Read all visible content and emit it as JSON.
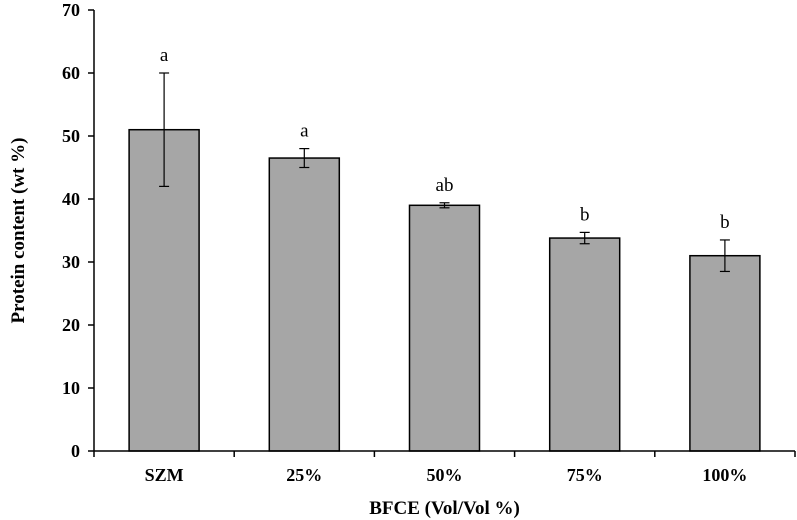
{
  "chart_data": {
    "type": "bar",
    "title": "",
    "xlabel": "BFCE (Vol/Vol %)",
    "ylabel": "Protein content (wt %)",
    "categories": [
      "SZM",
      "25%",
      "50%",
      "75%",
      "100%"
    ],
    "values": [
      51.0,
      46.5,
      39.0,
      33.8,
      31.0
    ],
    "error": [
      9.0,
      1.5,
      0.4,
      0.9,
      2.5
    ],
    "significance": [
      "a",
      "a",
      "ab",
      "b",
      "b"
    ],
    "ylim": [
      0,
      70
    ],
    "yticks": [
      "0",
      "10",
      "20",
      "30",
      "40",
      "50",
      "60",
      "70"
    ],
    "grid": false,
    "colors": {
      "bar": "#a6a6a6",
      "bar_edge": "#000000",
      "axis": "#000000"
    }
  }
}
